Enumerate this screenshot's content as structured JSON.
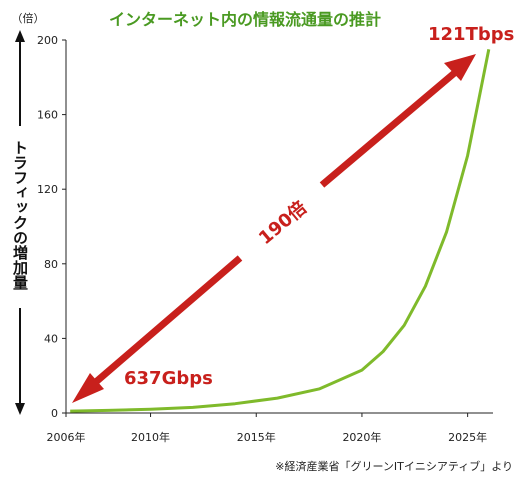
{
  "chart_data": {
    "type": "line",
    "title": "インターネット内の情報流通量の推計",
    "ylabel": "トラフィックの増加量",
    "yunit": "（倍）",
    "ylim": [
      0,
      200
    ],
    "yticks": [
      0,
      40,
      80,
      120,
      160,
      200
    ],
    "xlim": [
      2006,
      2026.2
    ],
    "xticks": [
      2006,
      2010,
      2015,
      2020,
      2025
    ],
    "xtick_suffix": "年",
    "series": [
      {
        "x": [
          2006.2,
          2008,
          2010,
          2012,
          2014,
          2016,
          2018,
          2020,
          2021,
          2022,
          2023,
          2024,
          2025,
          2026
        ],
        "values": [
          1,
          1.4,
          2,
          3,
          5,
          8,
          13,
          23,
          33,
          47,
          68,
          97,
          138,
          195
        ],
        "color": "#7fba2b"
      }
    ],
    "annotations": {
      "start": "637Gbps",
      "end": "121Tbps",
      "ratio": "190倍",
      "accent_color": "#c8201c",
      "title_color": "#4a9a22"
    },
    "source": "※経済産業省「グリーンITイニシアティブ」より"
  }
}
